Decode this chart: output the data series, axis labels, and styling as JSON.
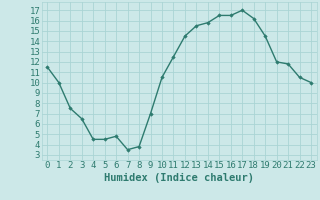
{
  "x": [
    0,
    1,
    2,
    3,
    4,
    5,
    6,
    7,
    8,
    9,
    10,
    11,
    12,
    13,
    14,
    15,
    16,
    17,
    18,
    19,
    20,
    21,
    22,
    23
  ],
  "y": [
    11.5,
    10.0,
    7.5,
    6.5,
    4.5,
    4.5,
    4.8,
    3.5,
    3.8,
    7.0,
    10.5,
    12.5,
    14.5,
    15.5,
    15.8,
    16.5,
    16.5,
    17.0,
    16.2,
    14.5,
    12.0,
    11.8,
    10.5,
    10.0
  ],
  "xlabel": "Humidex (Indice chaleur)",
  "xlim": [
    -0.5,
    23.5
  ],
  "ylim": [
    2.5,
    17.8
  ],
  "yticks": [
    3,
    4,
    5,
    6,
    7,
    8,
    9,
    10,
    11,
    12,
    13,
    14,
    15,
    16,
    17
  ],
  "xticks": [
    0,
    1,
    2,
    3,
    4,
    5,
    6,
    7,
    8,
    9,
    10,
    11,
    12,
    13,
    14,
    15,
    16,
    17,
    18,
    19,
    20,
    21,
    22,
    23
  ],
  "line_color": "#2e7b6f",
  "marker_color": "#2e7b6f",
  "bg_color": "#cce8e8",
  "grid_color": "#aad4d4",
  "tick_label_color": "#2e7b6f",
  "xlabel_color": "#2e7b6f",
  "font_size_xlabel": 7.5,
  "font_size_ticks": 6.5,
  "marker": "D",
  "marker_size": 1.8,
  "line_width": 1.0
}
